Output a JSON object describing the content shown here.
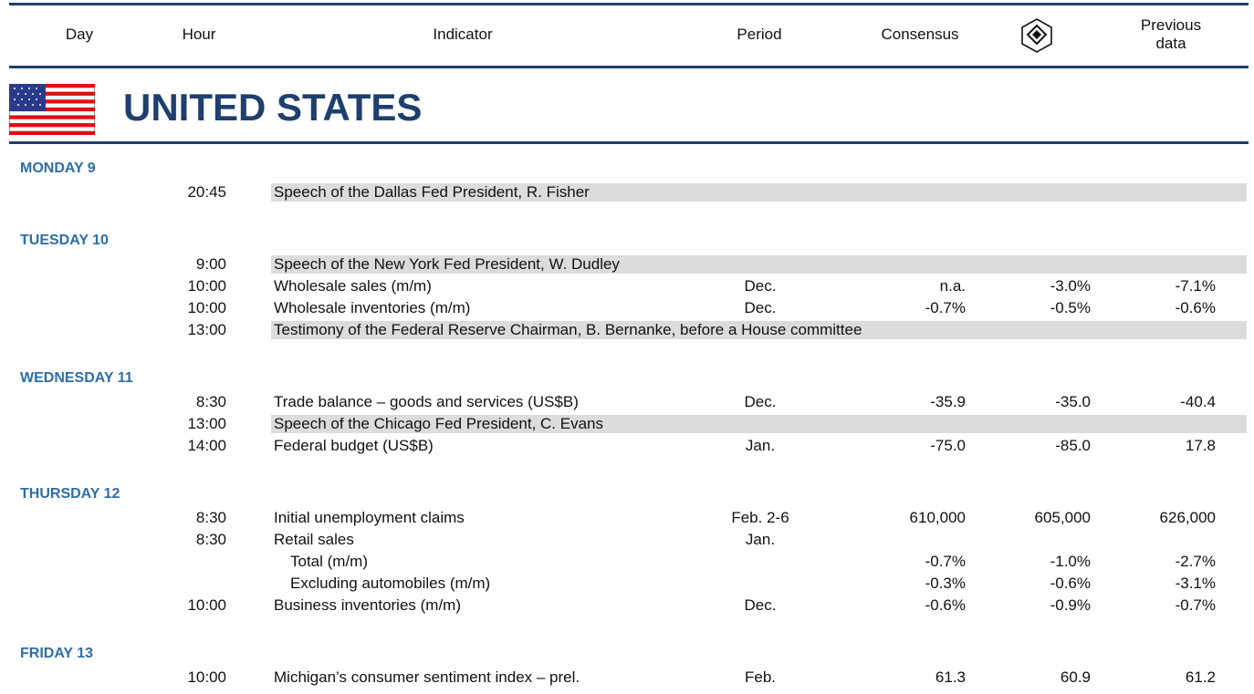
{
  "header": {
    "columns": [
      "Day",
      "Hour",
      "Indicator",
      "Period",
      "Consensus",
      "Previous data"
    ]
  },
  "country": "UNITED STATES",
  "days": [
    {
      "label": "MONDAY 9",
      "rows": [
        {
          "hour": "20:45",
          "indicator": "Speech of the Dallas Fed President, R. Fisher",
          "highlight": true
        }
      ]
    },
    {
      "label": "TUESDAY 10",
      "rows": [
        {
          "hour": "9:00",
          "indicator": "Speech of the New York Fed President, W. Dudley",
          "highlight": true
        },
        {
          "hour": "10:00",
          "indicator": "Wholesale sales (m/m)",
          "period": "Dec.",
          "consensus": "n.a.",
          "desjardins": "-3.0%",
          "previous": "-7.1%"
        },
        {
          "hour": "10:00",
          "indicator": "Wholesale inventories (m/m)",
          "period": "Dec.",
          "consensus": "-0.7%",
          "desjardins": "-0.5%",
          "previous": "-0.6%"
        },
        {
          "hour": "13:00",
          "indicator": "Testimony of the Federal Reserve Chairman, B. Bernanke, before a House committee",
          "highlight": true
        }
      ]
    },
    {
      "label": "WEDNESDAY 11",
      "rows": [
        {
          "hour": "8:30",
          "indicator": "Trade balance – goods and services (US$B)",
          "period": "Dec.",
          "consensus": "-35.9",
          "desjardins": "-35.0",
          "previous": "-40.4"
        },
        {
          "hour": "13:00",
          "indicator": "Speech of the Chicago Fed President, C. Evans",
          "highlight": true
        },
        {
          "hour": "14:00",
          "indicator": "Federal budget (US$B)",
          "period": "Jan.",
          "consensus": "-75.0",
          "desjardins": "-85.0",
          "previous": "17.8"
        }
      ]
    },
    {
      "label": "THURSDAY 12",
      "rows": [
        {
          "hour": "8:30",
          "indicator": "Initial unemployment claims",
          "period": "Feb. 2-6",
          "consensus": "610,000",
          "desjardins": "605,000",
          "previous": "626,000"
        },
        {
          "hour": "8:30",
          "indicator": "Retail sales",
          "period": "Jan."
        },
        {
          "indicator": "Total (m/m)",
          "indent": true,
          "consensus": "-0.7%",
          "desjardins": "-1.0%",
          "previous": "-2.7%"
        },
        {
          "indicator": "Excluding automobiles (m/m)",
          "indent": true,
          "consensus": "-0.3%",
          "desjardins": "-0.6%",
          "previous": "-3.1%"
        },
        {
          "hour": "10:00",
          "indicator": "Business inventories (m/m)",
          "period": "Dec.",
          "consensus": "-0.6%",
          "desjardins": "-0.9%",
          "previous": "-0.7%"
        }
      ]
    },
    {
      "label": "FRIDAY 13",
      "rows": [
        {
          "hour": "10:00",
          "indicator": "Michigan’s consumer sentiment index – prel.",
          "period": "Feb.",
          "consensus": "61.3",
          "desjardins": "60.9",
          "previous": "61.2"
        }
      ]
    }
  ]
}
